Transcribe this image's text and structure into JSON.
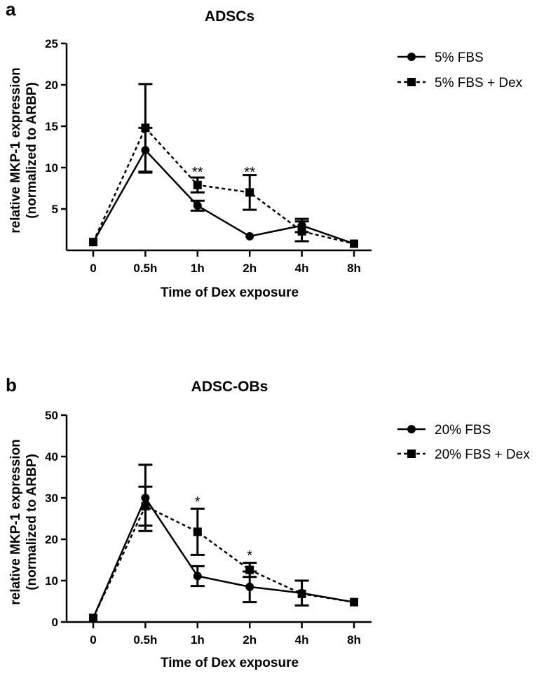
{
  "chart_data": [
    {
      "type": "line",
      "panel_label": "a",
      "title": "ADSCs",
      "xlabel": "Time of Dex exposure",
      "ylabel_line1": "relative MKP-1 expression",
      "ylabel_line2": "(normalized to ARBP)",
      "ylim": [
        0,
        25
      ],
      "yticks": [
        {
          "value": 5,
          "label": "5"
        },
        {
          "value": 10,
          "label": "10"
        },
        {
          "value": 15,
          "label": "15"
        },
        {
          "value": 20,
          "label": "20"
        },
        {
          "value": 25,
          "label": "25"
        }
      ],
      "categories": [
        "0",
        "0.5h",
        "1h",
        "2h",
        "4h",
        "8h"
      ],
      "grid": false,
      "legend_position": "top-right",
      "series": [
        {
          "name": "5% FBS",
          "marker": "circle",
          "line_style": "solid",
          "values": [
            1.0,
            12.1,
            5.4,
            1.7,
            3.0,
            0.8
          ],
          "errors": [
            0,
            2.7,
            0.6,
            0,
            0.8,
            0
          ]
        },
        {
          "name": "5% FBS + Dex",
          "marker": "square",
          "line_style": "dashed",
          "values": [
            1.0,
            14.8,
            7.9,
            7.0,
            2.3,
            0.8
          ],
          "errors": [
            0,
            5.3,
            0.9,
            2.1,
            1.2,
            0
          ]
        }
      ],
      "annotations": [
        {
          "category": "1h",
          "value": 9.4,
          "text": "**"
        },
        {
          "category": "2h",
          "value": 9.4,
          "text": "**"
        }
      ]
    },
    {
      "type": "line",
      "panel_label": "b",
      "title": "ADSC-OBs",
      "xlabel": "Time of Dex exposure",
      "ylabel_line1": "relative MKP-1 expression",
      "ylabel_line2": "(normalized to ARBP)",
      "ylim": [
        0,
        50
      ],
      "yticks": [
        {
          "value": 0,
          "label": "0"
        },
        {
          "value": 10,
          "label": "10"
        },
        {
          "value": 20,
          "label": "20"
        },
        {
          "value": 30,
          "label": "30"
        },
        {
          "value": 40,
          "label": "40"
        },
        {
          "value": 50,
          "label": "50"
        }
      ],
      "categories": [
        "0",
        "0.5h",
        "1h",
        "2h",
        "4h",
        "8h"
      ],
      "grid": false,
      "legend_position": "top-right",
      "series": [
        {
          "name": "20% FBS",
          "marker": "circle",
          "line_style": "solid",
          "values": [
            1.0,
            30.0,
            11.1,
            8.5,
            7.0,
            4.8
          ],
          "errors": [
            0,
            8.0,
            2.4,
            3.7,
            3.0,
            0
          ]
        },
        {
          "name": "20% FBS + Dex",
          "marker": "square",
          "line_style": "dashed",
          "values": [
            1.0,
            28.0,
            21.8,
            12.6,
            6.8,
            4.8
          ],
          "errors": [
            0,
            4.7,
            5.6,
            1.7,
            0,
            0
          ]
        }
      ],
      "annotations": [
        {
          "category": "1h",
          "value": 29.0,
          "text": "*"
        },
        {
          "category": "2h",
          "value": 16.0,
          "text": "*"
        }
      ]
    }
  ]
}
